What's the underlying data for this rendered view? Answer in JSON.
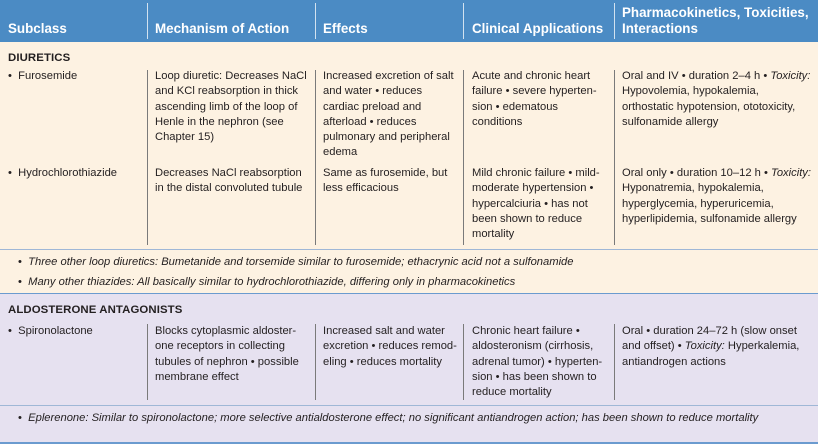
{
  "columns": {
    "subclass": "Subclass",
    "mechanism": "Mechanism of Action",
    "effects": "Effects",
    "clinical": "Clinical Applications",
    "pharm_line1": "Pharmacokinetics, Toxicities,",
    "pharm_line2": "Interactions"
  },
  "colors": {
    "header_bg": "#4b8bc4",
    "diuretics_bg": "#fdf2e2",
    "aldosterone_bg": "#e6e1f0",
    "rule": "#6b9bcf"
  },
  "sections": {
    "diuretics": {
      "title": "DIURETICS",
      "rows": [
        {
          "name": "Furosemide",
          "mechanism": [
            "Loop diuretic: Decreases NaCl",
            "and KCl reabsorption in thick",
            "ascending limb of the loop of",
            "Henle in the nephron (see",
            "Chapter 15)"
          ],
          "effects": [
            "Increased excretion of salt",
            "and water • reduces",
            "cardiac preload and",
            "afterload • reduces",
            "pulmonary and peripheral",
            "edema"
          ],
          "clinical": [
            "Acute and chronic heart",
            "failure • severe hyperten-",
            "sion • edematous",
            "conditions"
          ],
          "pharm_l1_plain": "Oral and IV • duration 2–4 h • ",
          "pharm_l1_italic": "Toxicity:",
          "pharm_rest": [
            "Hypovolemia, hypokalemia,",
            "orthostatic hypotension, ototoxicity,",
            "sulfonamide allergy"
          ]
        },
        {
          "name": "Hydrochlorothiazide",
          "mechanism": [
            "Decreases NaCl reabsorption",
            "in the distal convoluted tubule"
          ],
          "effects": [
            "Same as furosemide, but",
            "less efficacious"
          ],
          "clinical": [
            "Mild chronic failure • mild-",
            "moderate hypertension •",
            "hypercalciuria • has not",
            "been shown to reduce",
            "mortality"
          ],
          "pharm_l1_plain": "Oral only • duration 10–12 h • ",
          "pharm_l1_italic": "Toxicity:",
          "pharm_rest": [
            "Hyponatremia, hypokalemia,",
            "hyperglycemia, hyperuricemia,",
            "hyperlipidemia, sulfonamide allergy"
          ]
        }
      ],
      "notes": [
        "Three other loop diuretics: Bumetanide and torsemide similar to furosemide; ethacrynic acid not a sulfonamide",
        "Many other thiazides: All basically similar to hydrochlorothiazide, differing only in pharmacokinetics"
      ]
    },
    "aldosterone": {
      "title": "ALDOSTERONE ANTAGONISTS",
      "rows": [
        {
          "name": "Spironolactone",
          "mechanism": [
            "Blocks cytoplasmic aldoster-",
            "one receptors in collecting",
            "tubules of nephron • possible",
            "membrane effect"
          ],
          "effects": [
            "Increased salt and water",
            "excretion • reduces remod-",
            "eling • reduces mortality"
          ],
          "clinical": [
            "Chronic heart failure •",
            "aldosteronism (cirrhosis,",
            "adrenal tumor) • hyperten-",
            "sion • has been shown to",
            "reduce mortality"
          ],
          "pharm_l1": "Oral • duration 24–72 h (slow onset",
          "pharm_l2_plain": "and offset) • ",
          "pharm_l2_italic": "Toxicity:",
          "pharm_l2_tail": " Hyperkalemia,",
          "pharm_l3": "antiandrogen actions"
        }
      ],
      "notes": [
        "Eplerenone: Similar to spironolactone; more selective antialdosterone effect; no significant antiandrogen action; has been shown to reduce mortality"
      ]
    }
  }
}
